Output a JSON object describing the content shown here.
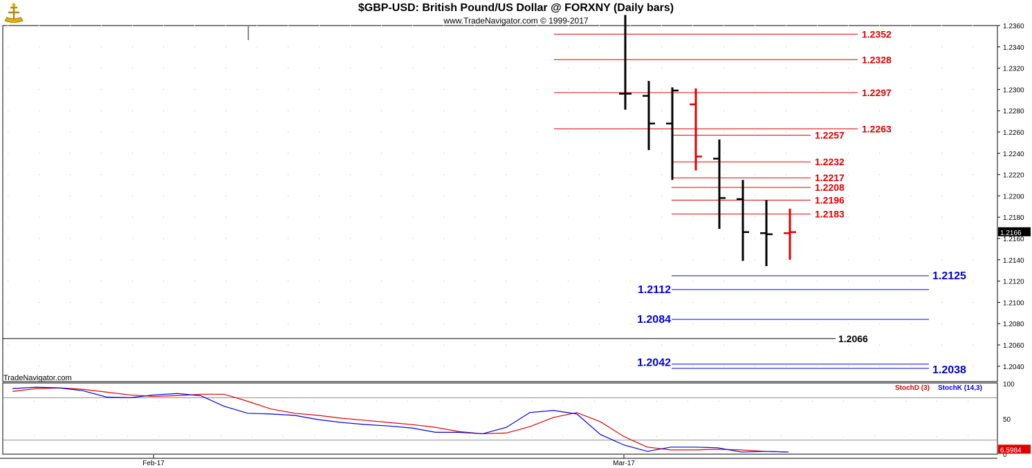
{
  "title": "$GBP-USD:  British Pound/US Dollar @ FORXNY  (Daily bars)",
  "copyright": "www.TradeNavigator.com © 1999-2017",
  "watermark": "TradeNavigator.com",
  "colors": {
    "bull": "#000000",
    "bear": "#e00000",
    "resistance": "#e00000",
    "support": "#0000e0",
    "pivot": "#000000",
    "stochD": "#e00000",
    "stochK": "#0000e0"
  },
  "chart_data": [
    {
      "type": "ohlc",
      "title": "$GBP-USD:  British Pound/US Dollar @ FORXNY  (Daily bars)",
      "ylim": [
        1.202,
        1.237
      ],
      "yticks": [
        "1.2040",
        "1.2060",
        "1.2080",
        "1.2100",
        "1.2120",
        "1.2140",
        "1.2160",
        "1.2180",
        "1.2200",
        "1.2220",
        "1.2240",
        "1.2260",
        "1.2280",
        "1.2300",
        "1.2320",
        "1.2340",
        "1.2360"
      ],
      "last_price": "1.2166",
      "x_labels": [
        "Feb-17",
        "Mar-17"
      ],
      "bars": [
        {
          "open": 1.2296,
          "high": 1.237,
          "low": 1.2281,
          "close": 1.2296,
          "color": "black"
        },
        {
          "open": 1.2294,
          "high": 1.2308,
          "low": 1.2243,
          "close": 1.2268,
          "color": "black"
        },
        {
          "open": 1.2268,
          "high": 1.2302,
          "low": 1.2215,
          "close": 1.2299,
          "color": "black"
        },
        {
          "open": 1.2286,
          "high": 1.2301,
          "low": 1.2224,
          "close": 1.2237,
          "color": "red"
        },
        {
          "open": 1.2235,
          "high": 1.2253,
          "low": 1.2169,
          "close": 1.2198,
          "color": "black"
        },
        {
          "open": 1.2197,
          "high": 1.2215,
          "low": 1.2139,
          "close": 1.2166,
          "color": "black"
        },
        {
          "open": 1.2165,
          "high": 1.2196,
          "low": 1.2134,
          "close": 1.2164,
          "color": "black"
        },
        {
          "open": 1.2165,
          "high": 1.2188,
          "low": 1.214,
          "close": 1.2166,
          "color": "red"
        }
      ],
      "resistance_levels": [
        "1.2352",
        "1.2328",
        "1.2297",
        "1.2263",
        "1.2257",
        "1.2232",
        "1.2217",
        "1.2208",
        "1.2196",
        "1.2183"
      ],
      "support_levels": [
        "1.2125",
        "1.2112",
        "1.2084",
        "1.2042",
        "1.2038"
      ],
      "pivot_level": "1.2066"
    },
    {
      "type": "line",
      "title": "",
      "ylim": [
        0,
        100
      ],
      "yticks": [
        "100",
        "50",
        "0"
      ],
      "last_value": "6.5984",
      "series": [
        {
          "name": "StochD (3)",
          "values": [
            89,
            93,
            94,
            92,
            88,
            84,
            82,
            83,
            85,
            85,
            75,
            64,
            58,
            55,
            51,
            48,
            45,
            42,
            38,
            32,
            29,
            30,
            39,
            52,
            59,
            46,
            25,
            10,
            6,
            6,
            7,
            6,
            4,
            3
          ]
        },
        {
          "name": "StochK (14,3)",
          "values": [
            93,
            95,
            94,
            90,
            81,
            80,
            84,
            86,
            83,
            68,
            58,
            57,
            55,
            49,
            45,
            42,
            40,
            37,
            31,
            31,
            29,
            38,
            59,
            62,
            57,
            28,
            13,
            4,
            10,
            10,
            9,
            3,
            4,
            3
          ]
        }
      ]
    }
  ]
}
